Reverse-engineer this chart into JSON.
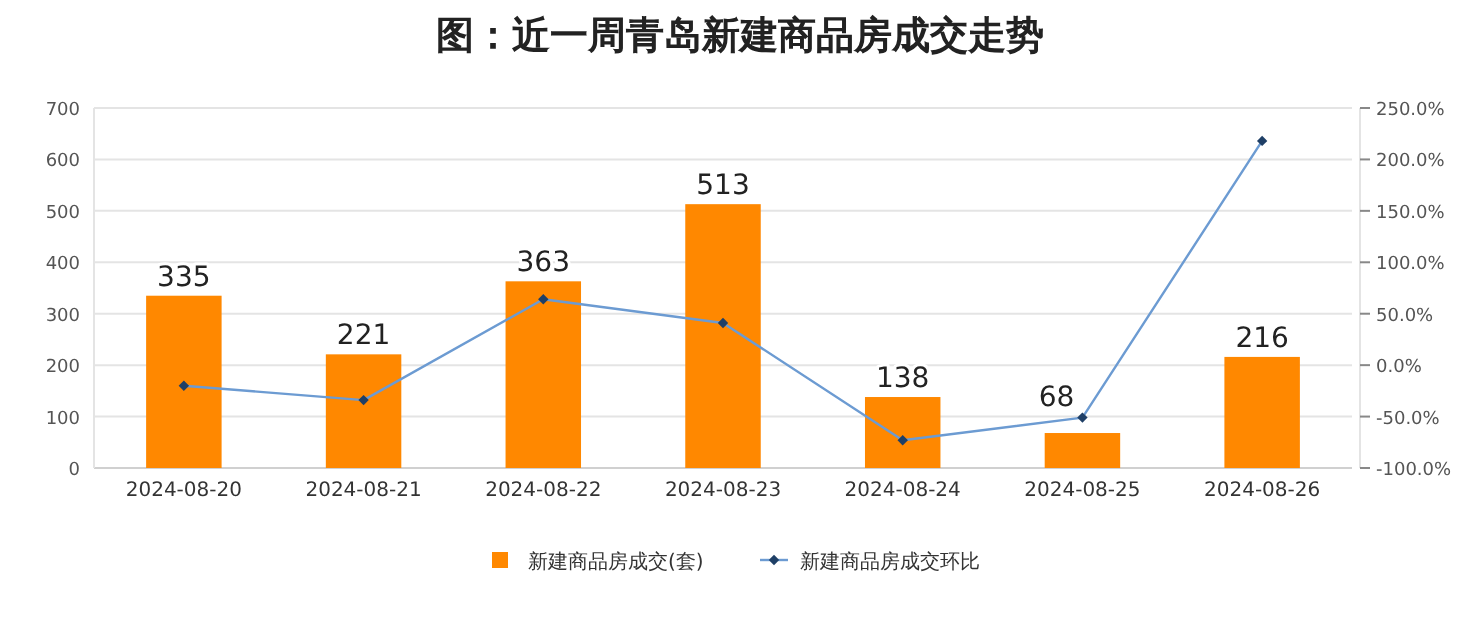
{
  "chart_data": {
    "type": "bar",
    "title": "图：近一周青岛新建商品房成交走势",
    "categories": [
      "2024-08-20",
      "2024-08-21",
      "2024-08-22",
      "2024-08-23",
      "2024-08-24",
      "2024-08-25",
      "2024-08-26"
    ],
    "series": [
      {
        "name": "新建商品房成交(套)",
        "color": "#ff8800",
        "values": [
          335,
          221,
          363,
          513,
          138,
          68,
          216
        ],
        "value_labels": [
          "335",
          "221",
          "363",
          "513",
          "138",
          "68",
          "216"
        ]
      },
      {
        "name": "新建商品房成交环比",
        "type": "line",
        "axis": "y2",
        "color": "#6c9bd2",
        "values": [
          -20,
          -34,
          64,
          41,
          -73,
          -51,
          218
        ]
      }
    ],
    "ylim": [
      0,
      700
    ],
    "yticks": [
      0,
      100,
      200,
      300,
      400,
      500,
      600,
      700
    ],
    "y2lim": [
      -100,
      250
    ],
    "y2ticks": [
      {
        "value": -100,
        "label": "-100.0%"
      },
      {
        "value": -50,
        "label": "-50.0%"
      },
      {
        "value": 0,
        "label": "0.0%"
      },
      {
        "value": 50,
        "label": "50.0%"
      },
      {
        "value": 100,
        "label": "100.0%"
      },
      {
        "value": 150,
        "label": "150.0%"
      },
      {
        "value": 200,
        "label": "200.0%"
      },
      {
        "value": 250,
        "label": "250.0%"
      }
    ],
    "grid": "y",
    "legend": "bottom",
    "marker": "diamond",
    "line_style": "solid"
  }
}
